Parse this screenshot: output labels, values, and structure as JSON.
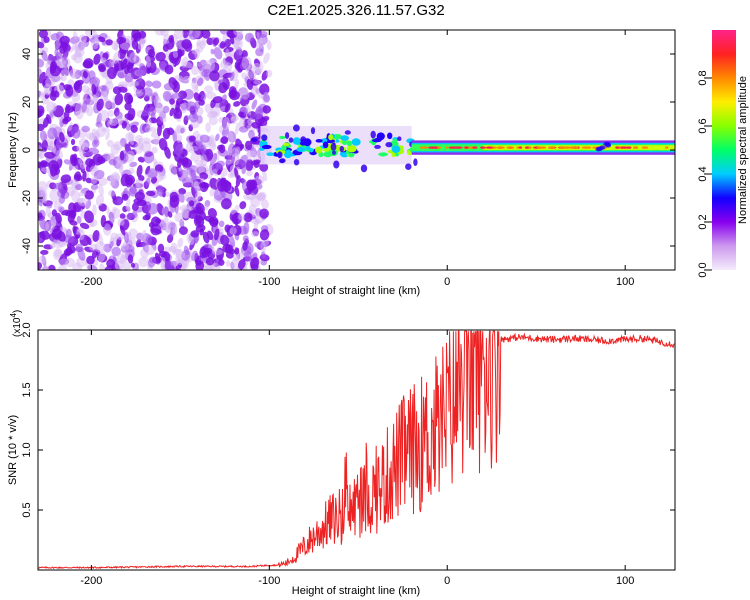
{
  "title": "C2E1.2025.326.11.57.G32",
  "spectrogram": {
    "xlabel": "Height of straight line (km)",
    "ylabel": "Frequency (Hz)",
    "xlim": [
      -230,
      128
    ],
    "ylim": [
      -50,
      50
    ],
    "xticks": [
      -200,
      -100,
      0,
      100
    ],
    "xtick_labels": [
      "-200",
      "-100",
      "0",
      "100"
    ],
    "yticks": [
      40,
      20,
      0,
      -20,
      -40
    ],
    "ytick_labels": [
      "40",
      "20",
      "0",
      "-20",
      "-40"
    ],
    "noise_region_end_km": -100,
    "signal_center_hz": 2
  },
  "colorbar": {
    "label": "Normalized spectral amplitude",
    "range": [
      0.0,
      1.0
    ],
    "ticks": [
      0.0,
      0.2,
      0.4,
      0.6,
      0.8
    ],
    "tick_labels": [
      "0.0",
      "0.2",
      "0.4",
      "0.6",
      "0.8"
    ],
    "colors": [
      "#f4ecfb",
      "#cc99ee",
      "#8800ee",
      "#1100ff",
      "#00ccff",
      "#00ff66",
      "#88ff00",
      "#ffee00",
      "#ff8800",
      "#ff2222",
      "#ff2288"
    ]
  },
  "chart_data": [
    {
      "type": "heatmap",
      "title": "C2E1.2025.326.11.57.G32",
      "xlabel": "Height of straight line (km)",
      "ylabel": "Frequency (Hz)",
      "xlim": [
        -230,
        128
      ],
      "ylim": [
        -50,
        50
      ],
      "colorbar_label": "Normalized spectral amplitude",
      "features": [
        {
          "x_range": [
            -230,
            -100
          ],
          "y_range": [
            -50,
            50
          ],
          "amplitude": 0.2
        },
        {
          "x_range": [
            -105,
            -20
          ],
          "y_center": 2,
          "amplitude": 0.4
        },
        {
          "x_range": [
            -20,
            128
          ],
          "y_center": 1,
          "amplitude": 0.9
        }
      ]
    },
    {
      "type": "line",
      "xlabel": "Height of straight line (km)",
      "ylabel": "SNR (10 * v/v)",
      "y_multiplier": "(x10",
      "y_multiplier_exp": "4",
      "y_multiplier_close": ")",
      "xlim": [
        -230,
        128
      ],
      "ylim": [
        0,
        2.0
      ],
      "xticks": [
        -200,
        -100,
        0,
        100
      ],
      "xtick_labels": [
        "-200",
        "-100",
        "0",
        "100"
      ],
      "yticks": [
        0.5,
        1.0,
        1.5,
        2.0
      ],
      "ytick_labels": [
        "0.5",
        "1.0",
        "1.5",
        "2.0"
      ],
      "color": "#ee2222",
      "series": [
        {
          "name": "SNR",
          "x": [
            -230,
            -200,
            -150,
            -110,
            -100,
            -95,
            -90,
            -85,
            -80,
            -75,
            -70,
            -65,
            -60,
            -55,
            -50,
            -45,
            -40,
            -35,
            -30,
            -25,
            -20,
            -15,
            -10,
            -5,
            0,
            5,
            10,
            15,
            20,
            25,
            30,
            40,
            50,
            60,
            70,
            80,
            90,
            100,
            110,
            120,
            128
          ],
          "y": [
            0.02,
            0.02,
            0.03,
            0.03,
            0.04,
            0.04,
            0.06,
            0.12,
            0.2,
            0.28,
            0.35,
            0.42,
            0.45,
            0.5,
            0.55,
            0.6,
            0.65,
            0.75,
            0.85,
            0.95,
            1.0,
            1.05,
            1.1,
            1.2,
            1.3,
            1.5,
            1.65,
            1.75,
            1.8,
            1.88,
            1.92,
            1.94,
            1.93,
            1.92,
            1.93,
            1.92,
            1.91,
            1.92,
            1.93,
            1.9,
            1.88
          ]
        }
      ]
    }
  ]
}
